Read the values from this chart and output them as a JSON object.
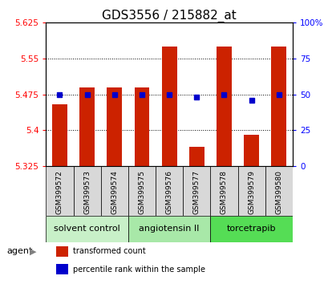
{
  "title": "GDS3556 / 215882_at",
  "samples": [
    "GSM399572",
    "GSM399573",
    "GSM399574",
    "GSM399575",
    "GSM399576",
    "GSM399577",
    "GSM399578",
    "GSM399579",
    "GSM399580"
  ],
  "red_values": [
    5.455,
    5.49,
    5.49,
    5.49,
    5.575,
    5.365,
    5.575,
    5.39,
    5.575
  ],
  "blue_values": [
    50,
    50,
    50,
    50,
    50,
    48,
    50,
    46,
    50
  ],
  "ylim_left": [
    5.325,
    5.625
  ],
  "ylim_right": [
    0,
    100
  ],
  "yticks_left": [
    5.325,
    5.4,
    5.475,
    5.55,
    5.625
  ],
  "yticks_right": [
    0,
    25,
    50,
    75,
    100
  ],
  "ytick_labels_right": [
    "0",
    "25",
    "50",
    "75",
    "100%"
  ],
  "hlines": [
    5.55,
    5.475,
    5.4
  ],
  "groups": [
    {
      "label": "solvent control",
      "start": 0,
      "end": 3,
      "color": "#c8f0c8"
    },
    {
      "label": "angiotensin II",
      "start": 3,
      "end": 6,
      "color": "#a8e8a8"
    },
    {
      "label": "torcetrapib",
      "start": 6,
      "end": 9,
      "color": "#55dd55"
    }
  ],
  "agent_label": "agent",
  "bar_color": "#cc2200",
  "dot_color": "#0000cc",
  "bar_bottom": 5.325,
  "bar_width": 0.55,
  "legend_items": [
    {
      "label": "transformed count",
      "color": "#cc2200"
    },
    {
      "label": "percentile rank within the sample",
      "color": "#0000cc"
    }
  ],
  "title_fontsize": 11,
  "tick_fontsize": 7.5,
  "sample_fontsize": 6.5,
  "group_fontsize": 8,
  "legend_fontsize": 7
}
